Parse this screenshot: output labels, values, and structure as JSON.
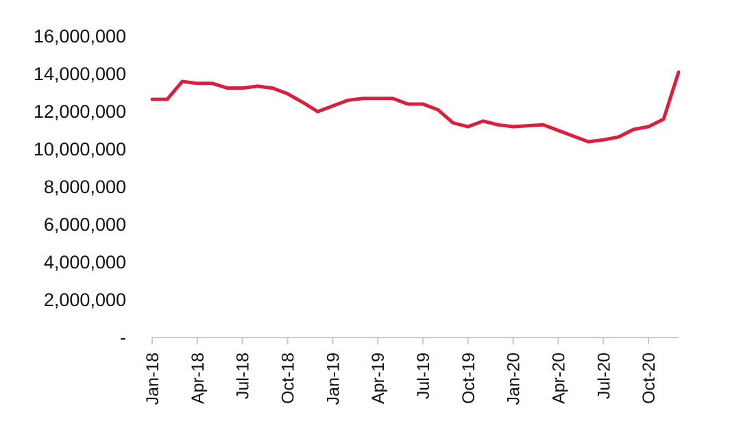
{
  "chart_data": {
    "type": "line",
    "title": "",
    "xlabel": "",
    "ylabel": "",
    "ylim": [
      0,
      16000000
    ],
    "yticks": [
      {
        "value": 0,
        "label": "-"
      },
      {
        "value": 2000000,
        "label": "2,000,000"
      },
      {
        "value": 4000000,
        "label": "4,000,000"
      },
      {
        "value": 6000000,
        "label": "6,000,000"
      },
      {
        "value": 8000000,
        "label": "8,000,000"
      },
      {
        "value": 10000000,
        "label": "10,000,000"
      },
      {
        "value": 12000000,
        "label": "12,000,000"
      },
      {
        "value": 14000000,
        "label": "14,000,000"
      },
      {
        "value": 16000000,
        "label": "16,000,000"
      }
    ],
    "x": [
      "Jan-18",
      "Feb-18",
      "Mar-18",
      "Apr-18",
      "May-18",
      "Jun-18",
      "Jul-18",
      "Aug-18",
      "Sep-18",
      "Oct-18",
      "Nov-18",
      "Dec-18",
      "Jan-19",
      "Feb-19",
      "Mar-19",
      "Apr-19",
      "May-19",
      "Jun-19",
      "Jul-19",
      "Aug-19",
      "Sep-19",
      "Oct-19",
      "Nov-19",
      "Dec-19",
      "Jan-20",
      "Feb-20",
      "Mar-20",
      "Apr-20",
      "May-20",
      "Jun-20",
      "Jul-20",
      "Aug-20",
      "Sep-20",
      "Oct-20",
      "Nov-20",
      "Dec-20"
    ],
    "xtick_labels": [
      {
        "index": 0,
        "label": "Jan-18"
      },
      {
        "index": 3,
        "label": "Apr-18"
      },
      {
        "index": 6,
        "label": "Jul-18"
      },
      {
        "index": 9,
        "label": "Oct-18"
      },
      {
        "index": 12,
        "label": "Jan-19"
      },
      {
        "index": 15,
        "label": "Apr-19"
      },
      {
        "index": 18,
        "label": "Jul-19"
      },
      {
        "index": 21,
        "label": "Oct-19"
      },
      {
        "index": 24,
        "label": "Jan-20"
      },
      {
        "index": 27,
        "label": "Apr-20"
      },
      {
        "index": 30,
        "label": "Jul-20"
      },
      {
        "index": 33,
        "label": "Oct-20"
      }
    ],
    "series": [
      {
        "values": [
          12650000,
          12650000,
          13600000,
          13500000,
          13500000,
          13250000,
          13250000,
          13350000,
          13250000,
          12950000,
          12500000,
          12000000,
          12300000,
          12600000,
          12700000,
          12700000,
          12700000,
          12400000,
          12400000,
          12100000,
          11400000,
          11200000,
          11500000,
          11300000,
          11200000,
          11250000,
          11300000,
          11000000,
          10700000,
          10400000,
          10500000,
          10650000,
          11050000,
          11200000,
          11600000,
          14100000
        ],
        "color": "#dc1e3c"
      }
    ],
    "grid": false,
    "legend": "none"
  }
}
